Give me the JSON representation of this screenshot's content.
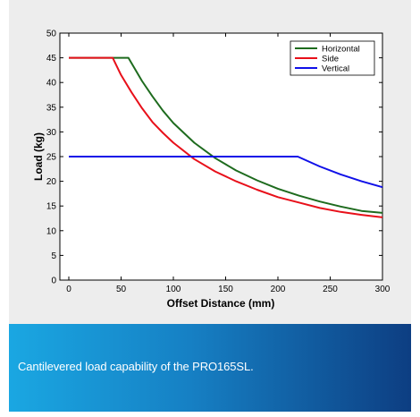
{
  "caption": "Cantilevered load capability of the PRO165SL.",
  "chart_data": {
    "type": "line",
    "title": "",
    "xlabel": "Offset Distance (mm)",
    "ylabel": "Load (kg)",
    "xlim": [
      0,
      300
    ],
    "ylim": [
      0,
      50
    ],
    "xticks": [
      0,
      50,
      100,
      150,
      200,
      250,
      300
    ],
    "yticks": [
      0,
      5,
      10,
      15,
      20,
      25,
      30,
      35,
      40,
      45,
      50
    ],
    "grid": false,
    "legend_position": "top-right",
    "series": [
      {
        "name": "Horizontal",
        "color": "#1e6b1e",
        "x": [
          0,
          57,
          70,
          80,
          90,
          100,
          120,
          140,
          160,
          180,
          200,
          220,
          240,
          260,
          280,
          300
        ],
        "y": [
          45,
          45,
          40.3,
          37.2,
          34.3,
          31.8,
          27.8,
          24.7,
          22.2,
          20.2,
          18.5,
          17.1,
          15.9,
          14.9,
          14.0,
          13.6
        ]
      },
      {
        "name": "Side",
        "color": "#e8101a",
        "x": [
          0,
          42,
          50,
          60,
          70,
          80,
          90,
          100,
          120,
          140,
          160,
          180,
          200,
          220,
          240,
          260,
          280,
          300
        ],
        "y": [
          45,
          45,
          41.5,
          38.0,
          34.8,
          32.0,
          29.8,
          27.8,
          24.5,
          22.0,
          20.0,
          18.3,
          16.8,
          15.7,
          14.6,
          13.8,
          13.2,
          12.7
        ]
      },
      {
        "name": "Vertical",
        "color": "#1010e8",
        "x": [
          0,
          219,
          240,
          260,
          280,
          300
        ],
        "y": [
          25,
          25,
          23.0,
          21.4,
          20.0,
          18.8
        ]
      }
    ]
  }
}
